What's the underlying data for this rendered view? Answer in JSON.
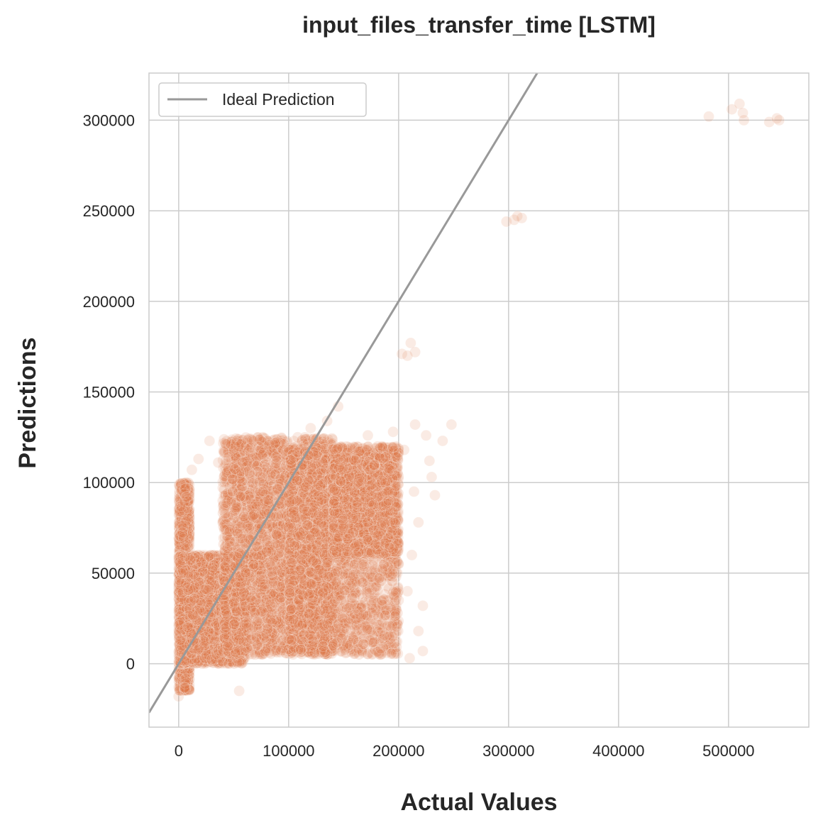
{
  "chart_data": {
    "type": "scatter",
    "title": "input_files_transfer_time [LSTM]",
    "xlabel": "Actual Values",
    "ylabel": "Predictions",
    "xlim": [
      -27000,
      573000
    ],
    "ylim": [
      -35000,
      326000
    ],
    "xticks": [
      0,
      100000,
      200000,
      300000,
      400000,
      500000
    ],
    "yticks": [
      0,
      50000,
      100000,
      150000,
      200000,
      250000,
      300000
    ],
    "xtick_labels": [
      "0",
      "100000",
      "200000",
      "300000",
      "400000",
      "500000"
    ],
    "ytick_labels": [
      "0",
      "50000",
      "100000",
      "150000",
      "200000",
      "250000",
      "300000"
    ],
    "grid": true,
    "legend": {
      "position": "top-left",
      "entries": [
        "Ideal Prediction"
      ]
    },
    "colors": {
      "points": "#e07b49",
      "ideal_line": "#999999",
      "grid": "#cccccc",
      "frame": "#cccccc"
    },
    "series": [
      {
        "kind": "points",
        "point_alpha": 0.15,
        "dense_clusters": [
          {
            "x_range": [
              0,
              10000
            ],
            "y_range": [
              -15000,
              100000
            ],
            "count": 1500
          },
          {
            "x_range": [
              0,
              60000
            ],
            "y_range": [
              0,
              60000
            ],
            "count": 3500
          },
          {
            "x_range": [
              40000,
              140000
            ],
            "y_range": [
              5000,
              125000
            ],
            "count": 3500
          },
          {
            "x_range": [
              100000,
              200000
            ],
            "y_range": [
              5000,
              120000
            ],
            "count": 2500
          },
          {
            "x_range": [
              140000,
              200000
            ],
            "y_range": [
              60000,
              120000
            ],
            "count": 1200
          }
        ],
        "points": [
          [
            482000,
            302000
          ],
          [
            503000,
            306000
          ],
          [
            510000,
            309000
          ],
          [
            513000,
            304000
          ],
          [
            514000,
            300000
          ],
          [
            537000,
            299000
          ],
          [
            544000,
            301000
          ],
          [
            546000,
            300000
          ],
          [
            298000,
            244000
          ],
          [
            305000,
            245000
          ],
          [
            312000,
            246000
          ],
          [
            308000,
            247000
          ],
          [
            203000,
            171000
          ],
          [
            211000,
            177000
          ],
          [
            215000,
            172000
          ],
          [
            208000,
            170000
          ],
          [
            248000,
            132000
          ],
          [
            240000,
            123000
          ],
          [
            230000,
            103000
          ],
          [
            233000,
            93000
          ],
          [
            228000,
            112000
          ],
          [
            225000,
            126000
          ],
          [
            215000,
            132000
          ],
          [
            222000,
            32000
          ],
          [
            218000,
            18000
          ],
          [
            222000,
            7000
          ],
          [
            210000,
            3000
          ],
          [
            208000,
            40000
          ],
          [
            200000,
            35000
          ],
          [
            55000,
            -15000
          ],
          [
            28000,
            123000
          ],
          [
            36000,
            111000
          ],
          [
            18000,
            113000
          ],
          [
            12000,
            107000
          ],
          [
            0,
            -18000
          ],
          [
            6000,
            -11000
          ],
          [
            145000,
            142000
          ],
          [
            172000,
            126000
          ],
          [
            185000,
            120000
          ],
          [
            195000,
            128000
          ],
          [
            205000,
            118000
          ],
          [
            135000,
            134000
          ],
          [
            120000,
            130000
          ],
          [
            212000,
            60000
          ],
          [
            200000,
            55000
          ],
          [
            190000,
            50000
          ],
          [
            214000,
            95000
          ],
          [
            218000,
            78000
          ]
        ]
      },
      {
        "kind": "line",
        "name": "Ideal Prediction",
        "x": [
          -27000,
          573000
        ],
        "y": [
          -27000,
          573000
        ]
      }
    ]
  }
}
